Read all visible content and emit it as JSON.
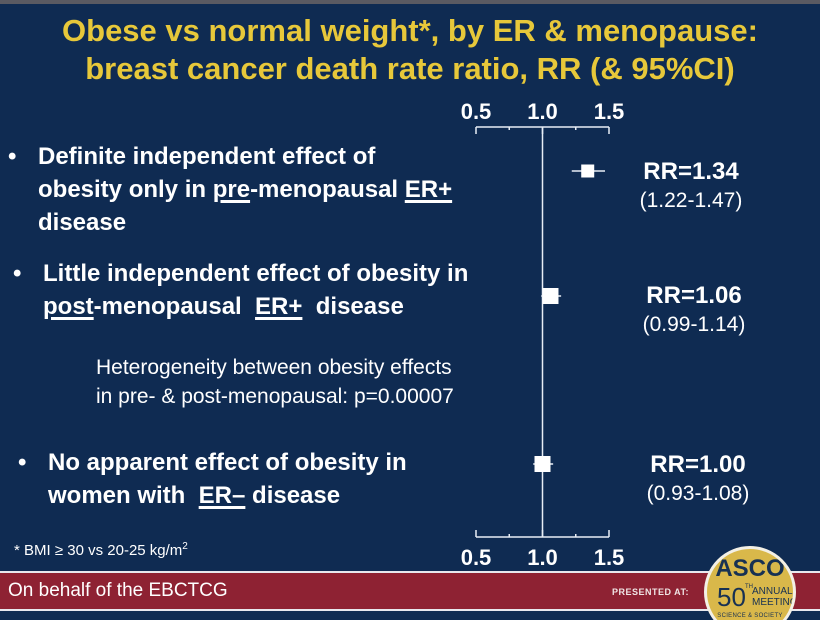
{
  "slide": {
    "title_line1": "Obese vs normal weight*, by ER & menopause:",
    "title_line2": "breast cancer death rate ratio, RR (& 95%CI)",
    "bullet_char": "•",
    "bullets": [
      {
        "parts": [
          {
            "text": "Definite independent effect of",
            "u": false
          },
          {
            "br": true
          },
          {
            "text": "obesity only in ",
            "u": false
          },
          {
            "text": "pre",
            "u": true
          },
          {
            "text": "-menopausal ",
            "u": false
          },
          {
            "text": "ER+",
            "u": true
          },
          {
            "br": true
          },
          {
            "text": "disease",
            "u": false
          }
        ]
      },
      {
        "parts": [
          {
            "text": "Little independent effect of obesity in",
            "u": false
          },
          {
            "br": true
          },
          {
            "text": "post",
            "u": true
          },
          {
            "text": "-menopausal  ",
            "u": false
          },
          {
            "text": "ER+",
            "u": true
          },
          {
            "text": "  disease",
            "u": false
          }
        ]
      },
      {
        "parts": [
          {
            "text": "No apparent effect of obesity in",
            "u": false
          },
          {
            "br": true
          },
          {
            "text": "women with  ",
            "u": false
          },
          {
            "text": "ER–",
            "u": true
          },
          {
            "text": " disease",
            "u": false
          }
        ]
      }
    ],
    "heterogeneity_line1": "Heterogeneity between obesity effects",
    "heterogeneity_line2": "in pre- & post-menopausal: p=0.00007",
    "footnote": "* BMI ≥ 30 vs 20-25 kg/m",
    "footnote_sup": "2",
    "footer_text": "On behalf of the EBCTCG",
    "presented_at": "PRESENTED AT:",
    "badge": {
      "name": "ASCO",
      "number": "50",
      "suffix": "TH",
      "line1": "ANNUAL",
      "line2": "MEETING",
      "tagline": "SCIENCE & SOCIETY"
    }
  },
  "colors": {
    "background": "#0f2b52",
    "title": "#e7c83a",
    "footer_band": "#8e2233",
    "badge_gold": "#d9b84a"
  },
  "chart_data": {
    "type": "forest",
    "xlabel": "",
    "ylabel": "",
    "xlim": [
      0.5,
      1.5
    ],
    "ticks": [
      0.5,
      0.75,
      1.0,
      1.25,
      1.5
    ],
    "tick_labels": [
      "0.5",
      "1.0",
      "1.5"
    ],
    "tick_label_values": [
      0.5,
      1.0,
      1.5
    ],
    "reference_line": 1.0,
    "grid": false,
    "series": [
      {
        "name": "pre-menopausal ER+",
        "rr": 1.34,
        "lo": 1.22,
        "hi": 1.47,
        "label": "RR=1.34",
        "ci_label": "(1.22-1.47)"
      },
      {
        "name": "post-menopausal ER+",
        "rr": 1.06,
        "lo": 0.99,
        "hi": 1.14,
        "label": "RR=1.06",
        "ci_label": "(0.99-1.14)"
      },
      {
        "name": "ER–",
        "rr": 1.0,
        "lo": 0.93,
        "hi": 1.08,
        "label": "RR=1.00",
        "ci_label": "(0.93-1.08)"
      }
    ]
  }
}
